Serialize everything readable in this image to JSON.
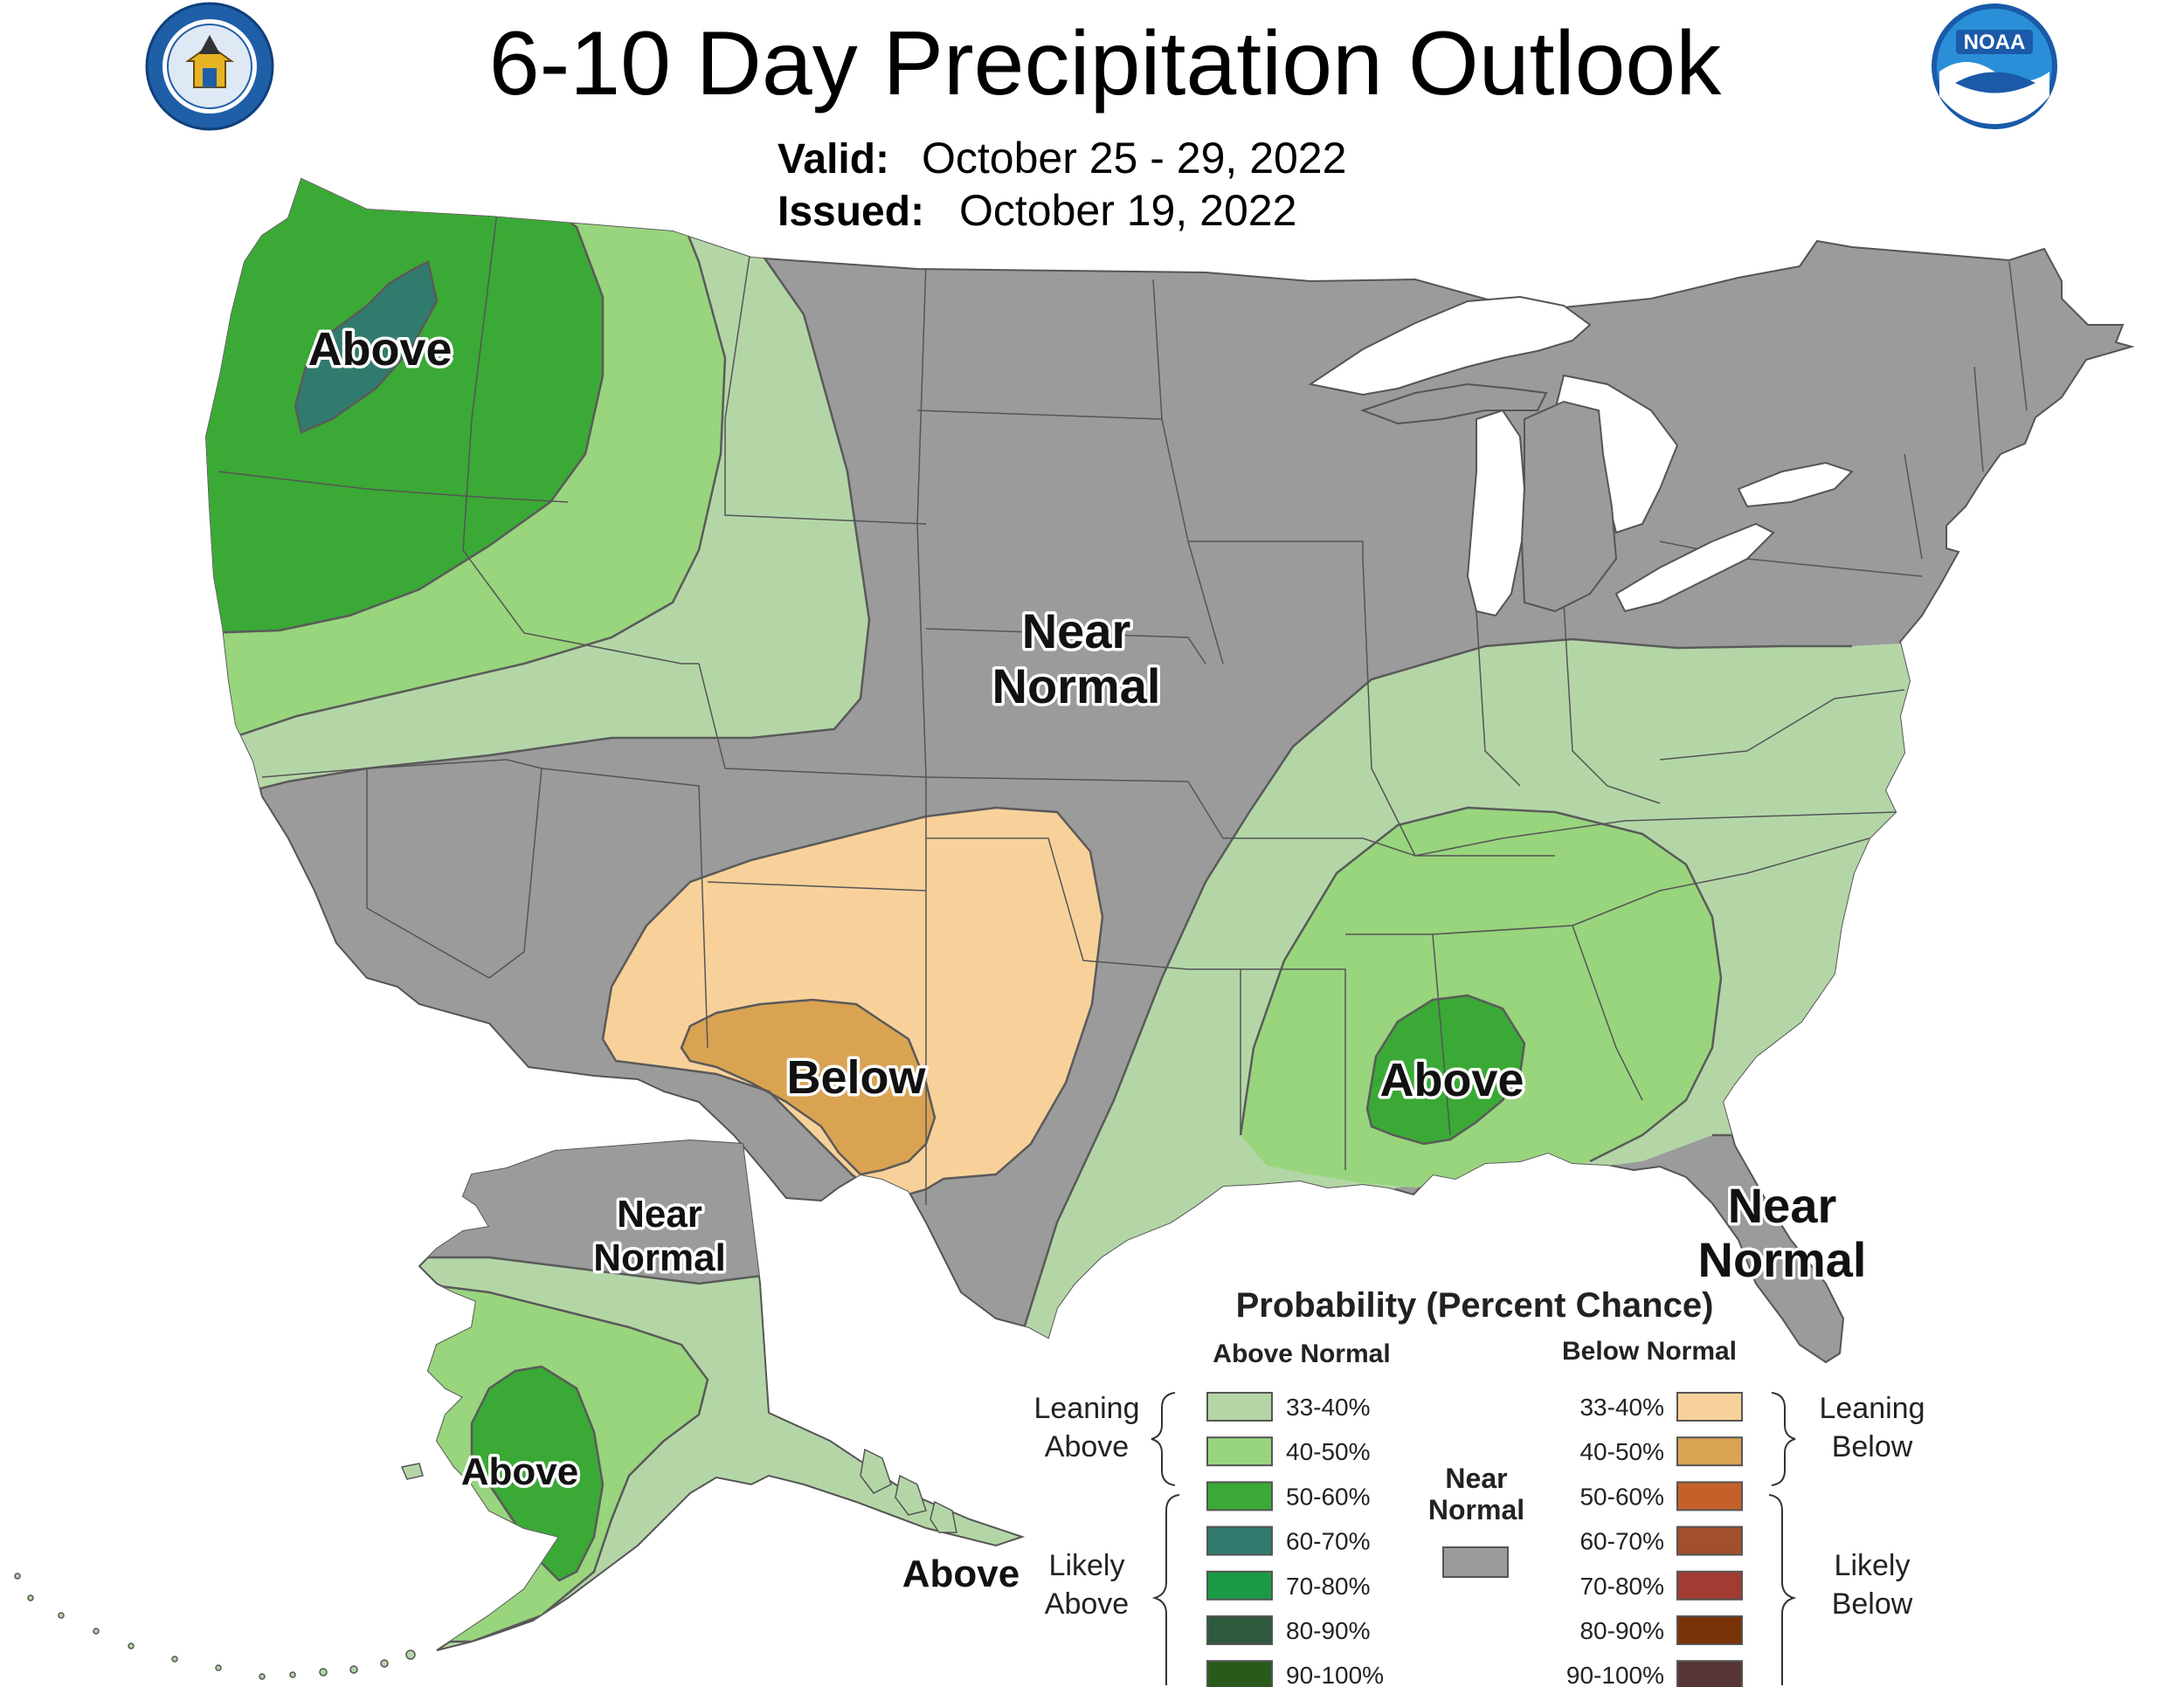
{
  "header": {
    "title": "6-10 Day Precipitation Outlook",
    "valid_label": "Valid:",
    "valid_value": "October 25 - 29, 2022",
    "issued_label": "Issued:",
    "issued_value": "October 19, 2022"
  },
  "logos": {
    "commerce_seal": "DEPARTMENT OF COMMERCE · UNITED STATES OF AMERICA",
    "noaa": "NOAA"
  },
  "map_labels": {
    "northwest": "Above",
    "central": [
      "Near",
      "Normal"
    ],
    "southwest": "Below",
    "southeast": "Above",
    "florida": [
      "Near",
      "Normal"
    ],
    "alaska_north": [
      "Near",
      "Normal"
    ],
    "alaska_southwest": "Above",
    "alaska_panhandle": "Above"
  },
  "legend": {
    "title": "Probability (Percent Chance)",
    "above_header": "Above Normal",
    "below_header": "Below Normal",
    "near_normal": [
      "Near",
      "Normal"
    ],
    "leaning_above": [
      "Leaning",
      "Above"
    ],
    "likely_above": [
      "Likely",
      "Above"
    ],
    "leaning_below": [
      "Leaning",
      "Below"
    ],
    "likely_below": [
      "Likely",
      "Below"
    ],
    "above_items": [
      {
        "label": "33-40%",
        "color": "#b4d6a7"
      },
      {
        "label": "40-50%",
        "color": "#98d57d"
      },
      {
        "label": "50-60%",
        "color": "#3aa935"
      },
      {
        "label": "60-70%",
        "color": "#317b6e"
      },
      {
        "label": "70-80%",
        "color": "#1a9a45"
      },
      {
        "label": "80-90%",
        "color": "#2e5a3e"
      },
      {
        "label": "90-100%",
        "color": "#285a1c"
      }
    ],
    "below_items": [
      {
        "label": "33-40%",
        "color": "#f8d19a"
      },
      {
        "label": "40-50%",
        "color": "#d9a352"
      },
      {
        "label": "50-60%",
        "color": "#c4612b"
      },
      {
        "label": "60-70%",
        "color": "#a14f2c"
      },
      {
        "label": "70-80%",
        "color": "#a13c32"
      },
      {
        "label": "80-90%",
        "color": "#7a3306"
      },
      {
        "label": "90-100%",
        "color": "#573638"
      }
    ],
    "near_color": "#9b9b9b"
  },
  "colors": {
    "near_normal": "#9b9b9b",
    "above_33_40": "#b4d6a7",
    "above_40_50": "#98d57d",
    "above_50_60": "#3aa935",
    "above_60_70": "#317b6e",
    "below_33_40": "#f8d19a",
    "below_40_50": "#d9a352",
    "water": "#ffffff",
    "border": "#555555"
  }
}
